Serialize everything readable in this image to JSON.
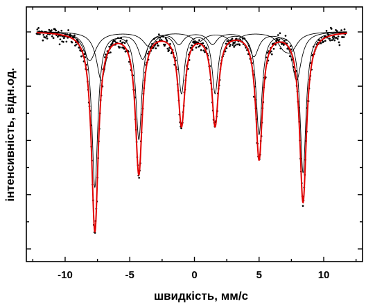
{
  "chart_data": {
    "type": "scatter",
    "xlabel": "швидкість, мм/с",
    "ylabel": "інтенсивність, відн.од.",
    "xlim": [
      -13,
      13
    ],
    "ylim": [
      -0.05,
      1.0
    ],
    "x_ticks": [
      "-10",
      "-5",
      "0",
      "5",
      "10"
    ],
    "x_tick_values": [
      -10,
      -5,
      0,
      5,
      10
    ],
    "y_tick_labels_shown": false,
    "grid": false,
    "legend": "none",
    "baseline": 0.9,
    "colors": {
      "data_points": "#000000",
      "fit_total": "#e00000",
      "subspectra": "#000000"
    },
    "series": [
      {
        "kind": "points",
        "style": "black dots",
        "note_values": "measured transmission, noisy around baseline, deep minima at line positions"
      },
      {
        "kind": "line",
        "style": "red fit envelope",
        "lines": [
          {
            "x": -7.7,
            "depth": 0.82
          },
          {
            "x": -4.3,
            "depth": 0.58
          },
          {
            "x": -1.0,
            "depth": 0.38
          },
          {
            "x": 1.6,
            "depth": 0.38
          },
          {
            "x": 5.0,
            "depth": 0.52
          },
          {
            "x": 8.4,
            "depth": 0.7
          }
        ],
        "width": 0.32
      },
      {
        "kind": "line",
        "style": "black subspectrum A",
        "lines": [
          {
            "x": -7.7,
            "depth": 0.64
          },
          {
            "x": -4.3,
            "depth": 0.44
          },
          {
            "x": -1.0,
            "depth": 0.25
          },
          {
            "x": 1.6,
            "depth": 0.25
          },
          {
            "x": 5.0,
            "depth": 0.42
          },
          {
            "x": 8.4,
            "depth": 0.58
          }
        ],
        "width": 0.28
      },
      {
        "kind": "line",
        "style": "black subspectrum B",
        "lines": [
          {
            "x": -7.2,
            "depth": 0.2
          },
          {
            "x": -4.0,
            "depth": 0.11
          },
          {
            "x": -1.2,
            "depth": 0.05
          },
          {
            "x": 1.4,
            "depth": 0.05
          },
          {
            "x": 4.6,
            "depth": 0.1
          },
          {
            "x": 7.9,
            "depth": 0.2
          }
        ],
        "width": 0.45
      },
      {
        "kind": "line",
        "style": "black subspectrum C",
        "lines": [
          {
            "x": -8.1,
            "depth": 0.12
          },
          {
            "x": -3.5,
            "depth": 0.06
          },
          {
            "x": 0.3,
            "depth": 0.04
          },
          {
            "x": 3.0,
            "depth": 0.04
          },
          {
            "x": 6.9,
            "depth": 0.05
          },
          {
            "x": 7.5,
            "depth": 0.06
          }
        ],
        "width": 0.6
      }
    ]
  }
}
